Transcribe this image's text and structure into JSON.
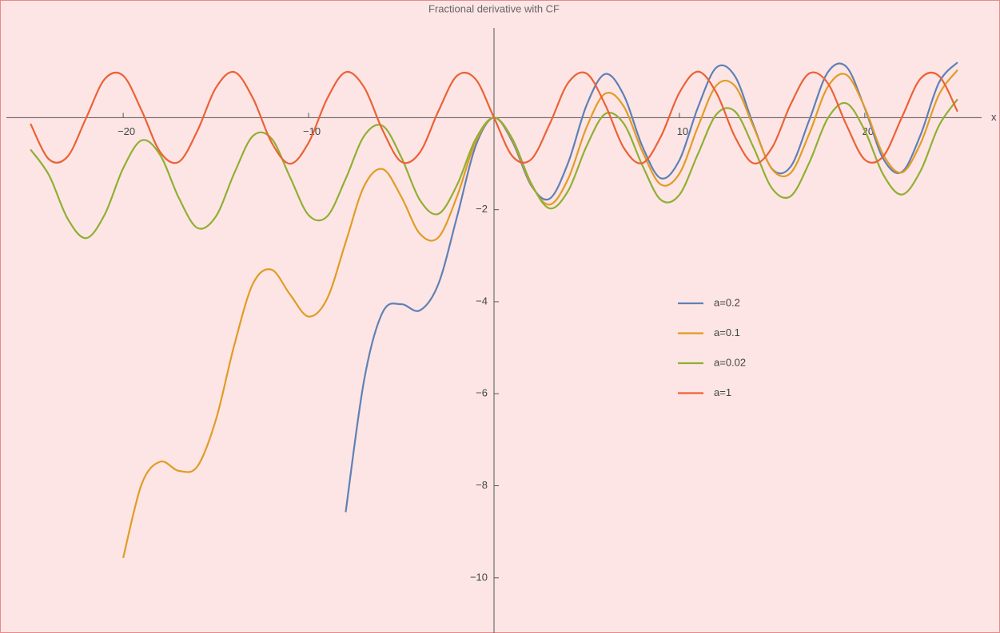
{
  "chart_data": {
    "type": "line",
    "title": "Fractional derivative with CF",
    "x_label": "x",
    "x": [
      -25,
      -24,
      -23,
      -22,
      -21,
      -20,
      -19,
      -18,
      -17,
      -16,
      -15,
      -14,
      -13,
      -12,
      -11,
      -10,
      -9,
      -8,
      -7,
      -6,
      -5,
      -4,
      -3,
      -2,
      -1,
      0,
      1,
      2,
      3,
      4,
      5,
      6,
      7,
      8,
      9,
      10,
      11,
      12,
      13,
      14,
      15,
      16,
      17,
      18,
      19,
      20,
      21,
      22,
      23,
      24,
      25
    ],
    "series": [
      {
        "name": "a=0.2",
        "color": "#5e81b5",
        "values": [
          null,
          null,
          null,
          null,
          null,
          null,
          null,
          null,
          null,
          null,
          null,
          null,
          null,
          null,
          null,
          null,
          null,
          -8.573,
          -5.69,
          -4.225,
          -4.054,
          -4.189,
          -3.614,
          -2.162,
          -0.627,
          0,
          -0.528,
          -1.47,
          -1.762,
          -0.979,
          0.279,
          0.949,
          0.489,
          -0.621,
          -1.317,
          -0.924,
          0.224,
          1.092,
          0.898,
          -0.166,
          -1.113,
          -1.064,
          -0.058,
          0.985,
          1.109,
          0.204,
          -0.897,
          -1.179,
          -0.382,
          0.762,
          1.203
        ]
      },
      {
        "name": "a=0.1",
        "color": "#e19c24",
        "values": [
          null,
          null,
          null,
          null,
          null,
          -9.567,
          -7.959,
          -7.477,
          -7.676,
          -7.58,
          -6.565,
          -4.93,
          -3.607,
          -3.303,
          -3.843,
          -4.322,
          -3.933,
          -2.708,
          -1.482,
          -1.118,
          -1.719,
          -2.522,
          -2.602,
          -1.717,
          -0.531,
          0,
          -0.492,
          -1.446,
          -1.89,
          -1.329,
          -0.202,
          0.524,
          0.243,
          -0.732,
          -1.454,
          -1.216,
          -0.197,
          0.702,
          0.686,
          -0.203,
          -1.121,
          -1.202,
          -0.351,
          0.668,
          0.934,
          0.218,
          -0.81,
          -1.192,
          -0.567,
          0.5,
          1.036
        ]
      },
      {
        "name": "a=0.02",
        "color": "#8fb032",
        "values": [
          -0.691,
          -1.251,
          -2.192,
          -2.618,
          -2.107,
          -1.099,
          -0.492,
          -0.815,
          -1.744,
          -2.397,
          -2.147,
          -1.197,
          -0.396,
          -0.453,
          -1.293,
          -2.118,
          -2.146,
          -1.329,
          -0.394,
          -0.179,
          -0.86,
          -1.789,
          -2.091,
          -1.468,
          -0.472,
          0,
          -0.466,
          -1.423,
          -1.972,
          -1.591,
          -0.612,
          0.083,
          -0.129,
          -1.035,
          -1.787,
          -1.676,
          -0.79,
          0.074,
          0.135,
          -0.648,
          -1.539,
          -1.707,
          -0.982,
          -0.017,
          0.313,
          -0.281,
          -1.241,
          -1.671,
          -1.164,
          -0.173,
          0.401
        ]
      },
      {
        "name": "a=1",
        "color": "#eb6235",
        "values": [
          -0.132,
          -0.906,
          -0.846,
          -0.009,
          0.837,
          0.913,
          0.15,
          -0.751,
          -0.961,
          -0.288,
          0.65,
          0.991,
          0.42,
          -0.537,
          -1.0,
          -0.544,
          0.412,
          0.989,
          0.657,
          -0.279,
          -0.959,
          -0.757,
          0.141,
          0.909,
          0.841,
          0,
          -0.841,
          -0.909,
          -0.141,
          0.757,
          0.959,
          0.279,
          -0.657,
          -0.989,
          -0.412,
          0.544,
          1.0,
          0.537,
          -0.42,
          -0.991,
          -0.65,
          0.288,
          0.961,
          0.751,
          -0.15,
          -0.913,
          -0.837,
          0.009,
          0.846,
          0.906,
          0.132
        ]
      }
    ],
    "xlim": [
      -26.3,
      26.3
    ],
    "ylim": [
      -11.2,
      1.95
    ],
    "xticks": [
      {
        "value": -20,
        "label": "−20"
      },
      {
        "value": -10,
        "label": "−10"
      },
      10,
      20
    ],
    "yticks": [
      {
        "value": -10,
        "label": "−10"
      },
      {
        "value": -8,
        "label": "−8"
      },
      {
        "value": -6,
        "label": "−6"
      },
      {
        "value": -4,
        "label": "−4"
      },
      {
        "value": -2,
        "label": "−2"
      }
    ],
    "legend_position": "center-right",
    "background": "#fde5e5"
  }
}
